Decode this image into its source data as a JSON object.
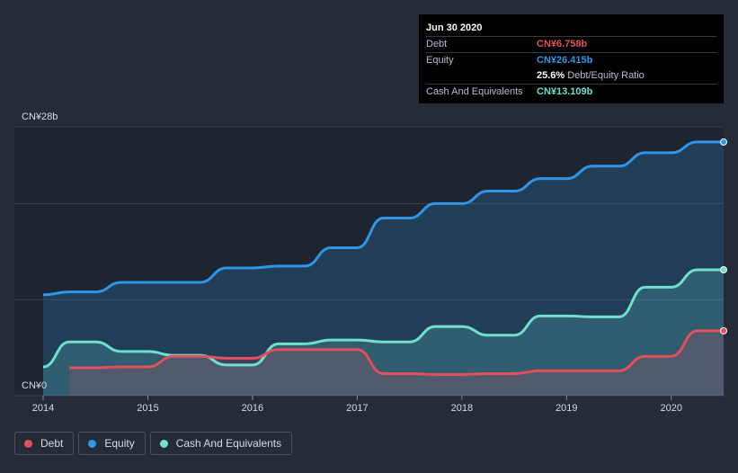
{
  "chart_data": {
    "type": "area",
    "x_label_ticks": [
      "2014",
      "2015",
      "2016",
      "2017",
      "2018",
      "2019",
      "2020"
    ],
    "y_top_label": "CN¥28b",
    "y_bottom_label": "CN¥0",
    "ylim": [
      0,
      28
    ],
    "xlim": [
      2014.0,
      2020.5
    ],
    "grid": true,
    "legend_position": "bottom-left",
    "series": [
      {
        "name": "Equity",
        "color": "#2f95e6",
        "x": [
          2014.0,
          2014.25,
          2014.5,
          2014.75,
          2015.0,
          2015.25,
          2015.5,
          2015.75,
          2016.0,
          2016.25,
          2016.5,
          2016.75,
          2017.0,
          2017.25,
          2017.5,
          2017.75,
          2018.0,
          2018.25,
          2018.5,
          2018.75,
          2019.0,
          2019.25,
          2019.5,
          2019.75,
          2020.0,
          2020.25,
          2020.5
        ],
        "values": [
          10.5,
          10.8,
          10.8,
          11.8,
          11.8,
          11.8,
          11.8,
          13.3,
          13.3,
          13.5,
          13.5,
          15.4,
          15.4,
          18.5,
          18.5,
          20.0,
          20.0,
          21.3,
          21.3,
          22.6,
          22.6,
          23.9,
          23.9,
          25.3,
          25.3,
          26.415,
          26.415
        ]
      },
      {
        "name": "Cash And Equivalents",
        "color": "#6fe0cc",
        "x": [
          2014.0,
          2014.25,
          2014.5,
          2014.75,
          2015.0,
          2015.25,
          2015.5,
          2015.75,
          2016.0,
          2016.25,
          2016.5,
          2016.75,
          2017.0,
          2017.25,
          2017.5,
          2017.75,
          2018.0,
          2018.25,
          2018.5,
          2018.75,
          2019.0,
          2019.25,
          2019.5,
          2019.75,
          2020.0,
          2020.25,
          2020.5
        ],
        "values": [
          3.0,
          5.6,
          5.6,
          4.6,
          4.6,
          4.2,
          4.2,
          3.2,
          3.2,
          5.4,
          5.4,
          5.8,
          5.8,
          5.6,
          5.6,
          7.2,
          7.2,
          6.3,
          6.3,
          8.3,
          8.3,
          8.2,
          8.2,
          11.3,
          11.3,
          13.109,
          13.109
        ]
      },
      {
        "name": "Debt",
        "color": "#e2505c",
        "x": [
          2014.25,
          2014.5,
          2014.75,
          2015.0,
          2015.25,
          2015.5,
          2015.75,
          2016.0,
          2016.25,
          2016.5,
          2016.75,
          2017.0,
          2017.25,
          2017.5,
          2017.75,
          2018.0,
          2018.25,
          2018.5,
          2018.75,
          2019.0,
          2019.25,
          2019.5,
          2019.75,
          2020.0,
          2020.25,
          2020.5
        ],
        "values": [
          2.9,
          2.9,
          3.0,
          3.0,
          4.1,
          4.1,
          3.9,
          3.9,
          4.8,
          4.8,
          4.8,
          4.8,
          2.3,
          2.3,
          2.2,
          2.2,
          2.3,
          2.3,
          2.6,
          2.6,
          2.6,
          2.6,
          4.1,
          4.1,
          6.758,
          6.758
        ]
      }
    ]
  },
  "tooltip": {
    "date": "Jun 30 2020",
    "debt_label": "Debt",
    "debt_value": "CN¥6.758b",
    "equity_label": "Equity",
    "equity_value": "CN¥26.415b",
    "ratio_value": "25.6%",
    "ratio_label": "Debt/Equity Ratio",
    "cash_label": "Cash And Equivalents",
    "cash_value": "CN¥13.109b"
  },
  "legend": {
    "debt_label": "Debt",
    "equity_label": "Equity",
    "cash_label": "Cash And Equivalents",
    "debt_color": "#e2505c",
    "equity_color": "#2f95e6",
    "cash_color": "#6fe0cc"
  }
}
